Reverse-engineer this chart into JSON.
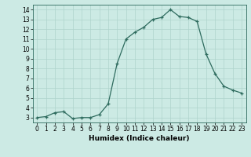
{
  "x": [
    0,
    1,
    2,
    3,
    4,
    5,
    6,
    7,
    8,
    9,
    10,
    11,
    12,
    13,
    14,
    15,
    16,
    17,
    18,
    19,
    20,
    21,
    22,
    23
  ],
  "y": [
    3.0,
    3.1,
    3.5,
    3.6,
    2.9,
    3.0,
    3.0,
    3.3,
    4.4,
    8.5,
    11.0,
    11.7,
    12.2,
    13.0,
    13.2,
    14.0,
    13.3,
    13.2,
    12.8,
    9.5,
    7.5,
    6.2,
    5.8,
    5.5
  ],
  "line_color": "#2e6b5e",
  "marker": "+",
  "marker_size": 3,
  "bg_color": "#cceae4",
  "grid_color": "#aed4cc",
  "xlabel": "Humidex (Indice chaleur)",
  "ylabel": "",
  "xlim": [
    -0.5,
    23.5
  ],
  "ylim": [
    2.5,
    14.5
  ],
  "yticks": [
    3,
    4,
    5,
    6,
    7,
    8,
    9,
    10,
    11,
    12,
    13,
    14
  ],
  "xticks": [
    0,
    1,
    2,
    3,
    4,
    5,
    6,
    7,
    8,
    9,
    10,
    11,
    12,
    13,
    14,
    15,
    16,
    17,
    18,
    19,
    20,
    21,
    22,
    23
  ],
  "label_fontsize": 6.5,
  "tick_fontsize": 5.5
}
